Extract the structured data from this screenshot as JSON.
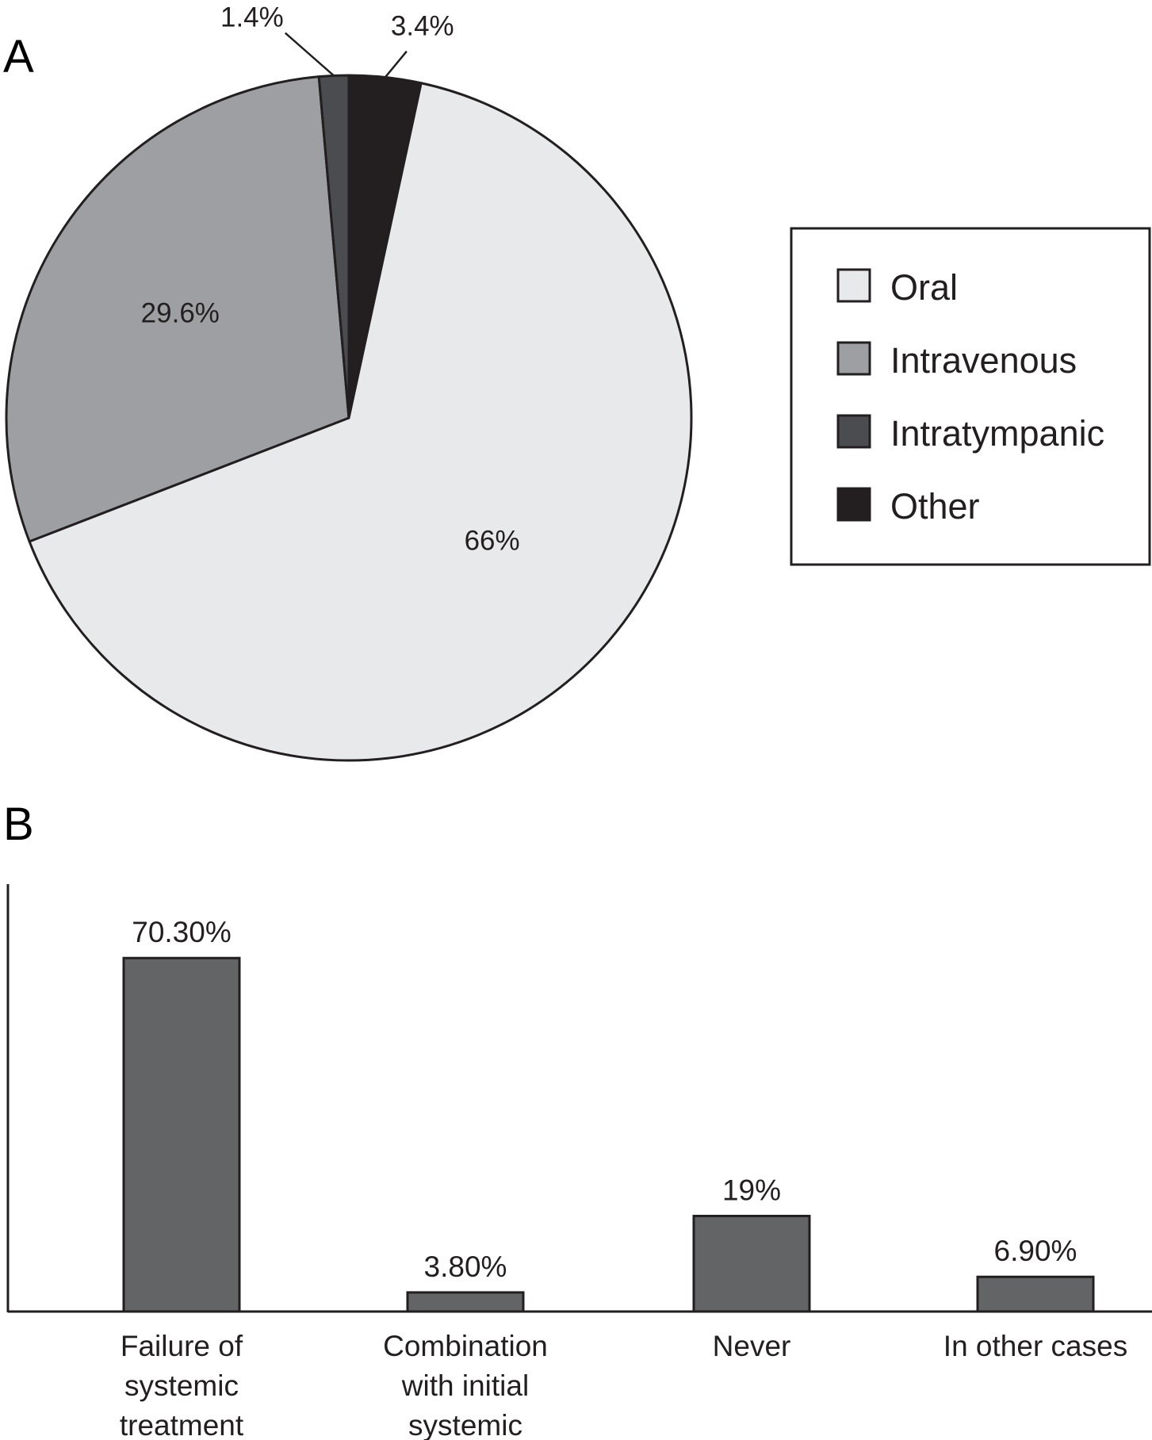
{
  "chart_data": [
    {
      "panel": "A",
      "type": "pie",
      "slices": [
        {
          "name": "Oral",
          "value": 66,
          "label": "66%",
          "color": "#e8e9eb"
        },
        {
          "name": "Intravenous",
          "value": 29.6,
          "label": "29.6%",
          "color": "#9d9fa2"
        },
        {
          "name": "Intratympanic",
          "value": 1.4,
          "label": "1.4%",
          "color": "#4b4c4f"
        },
        {
          "name": "Other",
          "value": 3.4,
          "label": "3.4%",
          "color": "#231f20"
        }
      ],
      "legend": {
        "placement": "right",
        "entries": [
          "Oral",
          "Intravenous",
          "Intratympanic",
          "Other"
        ]
      }
    },
    {
      "panel": "B",
      "type": "bar",
      "categories": [
        [
          "Failure of",
          "systemic",
          "treatment"
        ],
        [
          "Combination",
          "with initial",
          "systemic"
        ],
        [
          "Never"
        ],
        [
          "In other cases"
        ]
      ],
      "values": [
        70.3,
        3.8,
        19,
        6.9
      ],
      "value_labels": [
        "70.30%",
        "3.80%",
        "19%",
        "6.90%"
      ],
      "bar_color": "#636466",
      "ylim": [
        0,
        85
      ],
      "grid": false
    }
  ]
}
